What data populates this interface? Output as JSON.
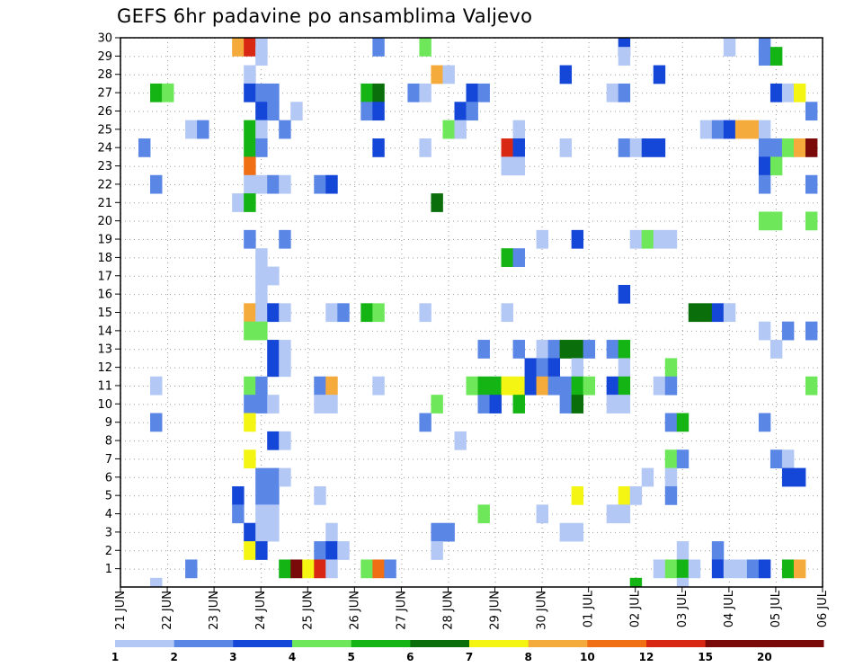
{
  "chart_data": {
    "type": "heatmap",
    "title": "GEFS 6hr padavine po ansamblima Valjevo",
    "xlabel": "",
    "ylabel": "",
    "members": [
      "1",
      "2",
      "3",
      "4",
      "5",
      "6",
      "7",
      "8",
      "9",
      "10",
      "11",
      "12",
      "13",
      "14",
      "15",
      "16",
      "17",
      "18",
      "19",
      "20",
      "21",
      "22",
      "23",
      "24",
      "25",
      "26",
      "27",
      "28",
      "29",
      "30"
    ],
    "ylim": [
      0,
      30
    ],
    "time_steps": 60,
    "step_hours": 6,
    "x_ticks": [
      {
        "step": 0,
        "label": "21 JUN"
      },
      {
        "step": 4,
        "label": "22 JUN"
      },
      {
        "step": 8,
        "label": "23 JUN"
      },
      {
        "step": 12,
        "label": "24 JUN"
      },
      {
        "step": 16,
        "label": "25 JUN"
      },
      {
        "step": 20,
        "label": "26 JUN"
      },
      {
        "step": 24,
        "label": "27 JUN"
      },
      {
        "step": 28,
        "label": "28 JUN"
      },
      {
        "step": 32,
        "label": "29 JUN"
      },
      {
        "step": 36,
        "label": "30 JUN"
      },
      {
        "step": 40,
        "label": "01 JUL"
      },
      {
        "step": 44,
        "label": "02 JUL"
      },
      {
        "step": 48,
        "label": "03 JUL"
      },
      {
        "step": 52,
        "label": "04 JUL"
      },
      {
        "step": 56,
        "label": "05 JUL"
      },
      {
        "step": 60,
        "label": "06 JUL"
      }
    ],
    "legend": {
      "thresholds": [
        "1",
        "2",
        "3",
        "4",
        "5",
        "6",
        "7",
        "8",
        "10",
        "12",
        "15",
        "20"
      ],
      "colors": [
        "#b4c8f5",
        "#5a86e6",
        "#1446d8",
        "#6ee85a",
        "#14b414",
        "#0a6e0a",
        "#f5f514",
        "#f5aa3c",
        "#f06e14",
        "#d82814",
        "#7a0a0a",
        "#7a0a0a"
      ]
    },
    "grid": true,
    "cells": [
      {
        "m": 30,
        "s": 10,
        "c": 7
      },
      {
        "m": 30,
        "s": 11,
        "c": 9
      },
      {
        "m": 30,
        "s": 12,
        "c": 0
      },
      {
        "m": 30,
        "s": 22,
        "c": 1
      },
      {
        "m": 30,
        "s": 26,
        "c": 3
      },
      {
        "m": 30,
        "s": 43,
        "c": 2
      },
      {
        "m": 30,
        "s": 52,
        "c": 0
      },
      {
        "m": 30,
        "s": 55,
        "c": 1
      },
      {
        "m": 29,
        "s": 12,
        "c": 0
      },
      {
        "m": 29,
        "s": 43,
        "c": 0
      },
      {
        "m": 29,
        "s": 55,
        "c": 1
      },
      {
        "m": 29,
        "s": 56,
        "c": 4
      },
      {
        "m": 28,
        "s": 11,
        "c": 0
      },
      {
        "m": 28,
        "s": 27,
        "c": 7
      },
      {
        "m": 28,
        "s": 28,
        "c": 0
      },
      {
        "m": 28,
        "s": 38,
        "c": 2
      },
      {
        "m": 28,
        "s": 46,
        "c": 2
      },
      {
        "m": 27,
        "s": 3,
        "c": 4
      },
      {
        "m": 27,
        "s": 4,
        "c": 3
      },
      {
        "m": 27,
        "s": 11,
        "c": 2
      },
      {
        "m": 27,
        "s": 12,
        "c": 1
      },
      {
        "m": 27,
        "s": 13,
        "c": 1
      },
      {
        "m": 27,
        "s": 21,
        "c": 4
      },
      {
        "m": 27,
        "s": 22,
        "c": 5
      },
      {
        "m": 27,
        "s": 25,
        "c": 1
      },
      {
        "m": 27,
        "s": 26,
        "c": 0
      },
      {
        "m": 27,
        "s": 30,
        "c": 2
      },
      {
        "m": 27,
        "s": 31,
        "c": 1
      },
      {
        "m": 27,
        "s": 42,
        "c": 0
      },
      {
        "m": 27,
        "s": 43,
        "c": 1
      },
      {
        "m": 27,
        "s": 56,
        "c": 2
      },
      {
        "m": 27,
        "s": 57,
        "c": 0
      },
      {
        "m": 27,
        "s": 58,
        "c": 6
      },
      {
        "m": 26,
        "s": 12,
        "c": 2
      },
      {
        "m": 26,
        "s": 13,
        "c": 1
      },
      {
        "m": 26,
        "s": 15,
        "c": 0
      },
      {
        "m": 26,
        "s": 21,
        "c": 1
      },
      {
        "m": 26,
        "s": 22,
        "c": 2
      },
      {
        "m": 26,
        "s": 29,
        "c": 2
      },
      {
        "m": 26,
        "s": 30,
        "c": 1
      },
      {
        "m": 26,
        "s": 59,
        "c": 1
      },
      {
        "m": 25,
        "s": 6,
        "c": 0
      },
      {
        "m": 25,
        "s": 7,
        "c": 1
      },
      {
        "m": 25,
        "s": 11,
        "c": 4
      },
      {
        "m": 25,
        "s": 12,
        "c": 0
      },
      {
        "m": 25,
        "s": 14,
        "c": 1
      },
      {
        "m": 25,
        "s": 28,
        "c": 3
      },
      {
        "m": 25,
        "s": 29,
        "c": 0
      },
      {
        "m": 25,
        "s": 34,
        "c": 0
      },
      {
        "m": 25,
        "s": 50,
        "c": 0
      },
      {
        "m": 25,
        "s": 51,
        "c": 1
      },
      {
        "m": 25,
        "s": 52,
        "c": 2
      },
      {
        "m": 25,
        "s": 53,
        "c": 7
      },
      {
        "m": 25,
        "s": 54,
        "c": 7
      },
      {
        "m": 25,
        "s": 55,
        "c": 0
      },
      {
        "m": 24,
        "s": 2,
        "c": 1
      },
      {
        "m": 24,
        "s": 11,
        "c": 4
      },
      {
        "m": 24,
        "s": 12,
        "c": 1
      },
      {
        "m": 24,
        "s": 22,
        "c": 2
      },
      {
        "m": 24,
        "s": 26,
        "c": 0
      },
      {
        "m": 24,
        "s": 33,
        "c": 9
      },
      {
        "m": 24,
        "s": 34,
        "c": 2
      },
      {
        "m": 24,
        "s": 38,
        "c": 0
      },
      {
        "m": 24,
        "s": 43,
        "c": 1
      },
      {
        "m": 24,
        "s": 44,
        "c": 0
      },
      {
        "m": 24,
        "s": 45,
        "c": 2
      },
      {
        "m": 24,
        "s": 46,
        "c": 2
      },
      {
        "m": 24,
        "s": 55,
        "c": 1
      },
      {
        "m": 24,
        "s": 56,
        "c": 1
      },
      {
        "m": 24,
        "s": 57,
        "c": 3
      },
      {
        "m": 24,
        "s": 58,
        "c": 7
      },
      {
        "m": 24,
        "s": 59,
        "c": 10
      },
      {
        "m": 23,
        "s": 11,
        "c": 8
      },
      {
        "m": 23,
        "s": 33,
        "c": 0
      },
      {
        "m": 23,
        "s": 34,
        "c": 0
      },
      {
        "m": 23,
        "s": 55,
        "c": 2
      },
      {
        "m": 23,
        "s": 56,
        "c": 3
      },
      {
        "m": 22,
        "s": 3,
        "c": 1
      },
      {
        "m": 22,
        "s": 11,
        "c": 0
      },
      {
        "m": 22,
        "s": 12,
        "c": 0
      },
      {
        "m": 22,
        "s": 13,
        "c": 1
      },
      {
        "m": 22,
        "s": 14,
        "c": 0
      },
      {
        "m": 22,
        "s": 17,
        "c": 1
      },
      {
        "m": 22,
        "s": 18,
        "c": 2
      },
      {
        "m": 22,
        "s": 55,
        "c": 1
      },
      {
        "m": 22,
        "s": 59,
        "c": 1
      },
      {
        "m": 21,
        "s": 10,
        "c": 0
      },
      {
        "m": 21,
        "s": 11,
        "c": 4
      },
      {
        "m": 21,
        "s": 27,
        "c": 5
      },
      {
        "m": 20,
        "s": 55,
        "c": 3
      },
      {
        "m": 20,
        "s": 56,
        "c": 3
      },
      {
        "m": 20,
        "s": 59,
        "c": 3
      },
      {
        "m": 19,
        "s": 11,
        "c": 1
      },
      {
        "m": 19,
        "s": 14,
        "c": 1
      },
      {
        "m": 19,
        "s": 36,
        "c": 0
      },
      {
        "m": 19,
        "s": 39,
        "c": 2
      },
      {
        "m": 19,
        "s": 44,
        "c": 0
      },
      {
        "m": 19,
        "s": 45,
        "c": 3
      },
      {
        "m": 19,
        "s": 46,
        "c": 0
      },
      {
        "m": 19,
        "s": 47,
        "c": 0
      },
      {
        "m": 18,
        "s": 12,
        "c": 0
      },
      {
        "m": 18,
        "s": 33,
        "c": 4
      },
      {
        "m": 18,
        "s": 34,
        "c": 1
      },
      {
        "m": 17,
        "s": 12,
        "c": 0
      },
      {
        "m": 17,
        "s": 13,
        "c": 0
      },
      {
        "m": 16,
        "s": 12,
        "c": 0
      },
      {
        "m": 16,
        "s": 43,
        "c": 2
      },
      {
        "m": 15,
        "s": 11,
        "c": 7
      },
      {
        "m": 15,
        "s": 12,
        "c": 0
      },
      {
        "m": 15,
        "s": 13,
        "c": 2
      },
      {
        "m": 15,
        "s": 14,
        "c": 0
      },
      {
        "m": 15,
        "s": 18,
        "c": 0
      },
      {
        "m": 15,
        "s": 19,
        "c": 1
      },
      {
        "m": 15,
        "s": 21,
        "c": 4
      },
      {
        "m": 15,
        "s": 22,
        "c": 3
      },
      {
        "m": 15,
        "s": 26,
        "c": 0
      },
      {
        "m": 15,
        "s": 33,
        "c": 0
      },
      {
        "m": 15,
        "s": 49,
        "c": 5
      },
      {
        "m": 15,
        "s": 50,
        "c": 5
      },
      {
        "m": 15,
        "s": 51,
        "c": 2
      },
      {
        "m": 15,
        "s": 52,
        "c": 0
      },
      {
        "m": 14,
        "s": 11,
        "c": 3
      },
      {
        "m": 14,
        "s": 12,
        "c": 3
      },
      {
        "m": 14,
        "s": 55,
        "c": 0
      },
      {
        "m": 14,
        "s": 57,
        "c": 1
      },
      {
        "m": 14,
        "s": 59,
        "c": 1
      },
      {
        "m": 13,
        "s": 13,
        "c": 2
      },
      {
        "m": 13,
        "s": 14,
        "c": 0
      },
      {
        "m": 13,
        "s": 31,
        "c": 1
      },
      {
        "m": 13,
        "s": 34,
        "c": 1
      },
      {
        "m": 13,
        "s": 36,
        "c": 0
      },
      {
        "m": 13,
        "s": 37,
        "c": 1
      },
      {
        "m": 13,
        "s": 38,
        "c": 5
      },
      {
        "m": 13,
        "s": 39,
        "c": 5
      },
      {
        "m": 13,
        "s": 40,
        "c": 1
      },
      {
        "m": 13,
        "s": 42,
        "c": 1
      },
      {
        "m": 13,
        "s": 43,
        "c": 4
      },
      {
        "m": 13,
        "s": 56,
        "c": 0
      },
      {
        "m": 12,
        "s": 13,
        "c": 2
      },
      {
        "m": 12,
        "s": 14,
        "c": 0
      },
      {
        "m": 12,
        "s": 35,
        "c": 2
      },
      {
        "m": 12,
        "s": 36,
        "c": 1
      },
      {
        "m": 12,
        "s": 37,
        "c": 2
      },
      {
        "m": 12,
        "s": 39,
        "c": 0
      },
      {
        "m": 12,
        "s": 43,
        "c": 0
      },
      {
        "m": 12,
        "s": 47,
        "c": 3
      },
      {
        "m": 11,
        "s": 3,
        "c": 0
      },
      {
        "m": 11,
        "s": 11,
        "c": 3
      },
      {
        "m": 11,
        "s": 12,
        "c": 1
      },
      {
        "m": 11,
        "s": 17,
        "c": 1
      },
      {
        "m": 11,
        "s": 18,
        "c": 7
      },
      {
        "m": 11,
        "s": 22,
        "c": 0
      },
      {
        "m": 11,
        "s": 30,
        "c": 3
      },
      {
        "m": 11,
        "s": 31,
        "c": 4
      },
      {
        "m": 11,
        "s": 32,
        "c": 4
      },
      {
        "m": 11,
        "s": 33,
        "c": 6
      },
      {
        "m": 11,
        "s": 34,
        "c": 6
      },
      {
        "m": 11,
        "s": 35,
        "c": 2
      },
      {
        "m": 11,
        "s": 36,
        "c": 7
      },
      {
        "m": 11,
        "s": 37,
        "c": 1
      },
      {
        "m": 11,
        "s": 38,
        "c": 1
      },
      {
        "m": 11,
        "s": 39,
        "c": 4
      },
      {
        "m": 11,
        "s": 40,
        "c": 3
      },
      {
        "m": 11,
        "s": 42,
        "c": 2
      },
      {
        "m": 11,
        "s": 43,
        "c": 4
      },
      {
        "m": 11,
        "s": 46,
        "c": 0
      },
      {
        "m": 11,
        "s": 47,
        "c": 1
      },
      {
        "m": 11,
        "s": 59,
        "c": 3
      },
      {
        "m": 10,
        "s": 11,
        "c": 1
      },
      {
        "m": 10,
        "s": 12,
        "c": 1
      },
      {
        "m": 10,
        "s": 13,
        "c": 0
      },
      {
        "m": 10,
        "s": 17,
        "c": 0
      },
      {
        "m": 10,
        "s": 18,
        "c": 0
      },
      {
        "m": 10,
        "s": 27,
        "c": 3
      },
      {
        "m": 10,
        "s": 31,
        "c": 1
      },
      {
        "m": 10,
        "s": 32,
        "c": 2
      },
      {
        "m": 10,
        "s": 34,
        "c": 4
      },
      {
        "m": 10,
        "s": 38,
        "c": 1
      },
      {
        "m": 10,
        "s": 39,
        "c": 5
      },
      {
        "m": 10,
        "s": 42,
        "c": 0
      },
      {
        "m": 10,
        "s": 43,
        "c": 0
      },
      {
        "m": 9,
        "s": 3,
        "c": 1
      },
      {
        "m": 9,
        "s": 11,
        "c": 6
      },
      {
        "m": 9,
        "s": 26,
        "c": 1
      },
      {
        "m": 9,
        "s": 47,
        "c": 1
      },
      {
        "m": 9,
        "s": 48,
        "c": 4
      },
      {
        "m": 9,
        "s": 55,
        "c": 1
      },
      {
        "m": 8,
        "s": 13,
        "c": 2
      },
      {
        "m": 8,
        "s": 14,
        "c": 0
      },
      {
        "m": 8,
        "s": 29,
        "c": 0
      },
      {
        "m": 7,
        "s": 11,
        "c": 6
      },
      {
        "m": 7,
        "s": 47,
        "c": 3
      },
      {
        "m": 7,
        "s": 48,
        "c": 1
      },
      {
        "m": 7,
        "s": 56,
        "c": 1
      },
      {
        "m": 7,
        "s": 57,
        "c": 0
      },
      {
        "m": 6,
        "s": 12,
        "c": 1
      },
      {
        "m": 6,
        "s": 13,
        "c": 1
      },
      {
        "m": 6,
        "s": 14,
        "c": 0
      },
      {
        "m": 6,
        "s": 45,
        "c": 0
      },
      {
        "m": 6,
        "s": 47,
        "c": 0
      },
      {
        "m": 6,
        "s": 57,
        "c": 2
      },
      {
        "m": 6,
        "s": 58,
        "c": 2
      },
      {
        "m": 5,
        "s": 10,
        "c": 2
      },
      {
        "m": 5,
        "s": 12,
        "c": 1
      },
      {
        "m": 5,
        "s": 13,
        "c": 1
      },
      {
        "m": 5,
        "s": 17,
        "c": 0
      },
      {
        "m": 5,
        "s": 39,
        "c": 6
      },
      {
        "m": 5,
        "s": 43,
        "c": 6
      },
      {
        "m": 5,
        "s": 44,
        "c": 0
      },
      {
        "m": 5,
        "s": 47,
        "c": 1
      },
      {
        "m": 4,
        "s": 10,
        "c": 1
      },
      {
        "m": 4,
        "s": 12,
        "c": 0
      },
      {
        "m": 4,
        "s": 13,
        "c": 0
      },
      {
        "m": 4,
        "s": 31,
        "c": 3
      },
      {
        "m": 4,
        "s": 36,
        "c": 0
      },
      {
        "m": 4,
        "s": 42,
        "c": 0
      },
      {
        "m": 4,
        "s": 43,
        "c": 0
      },
      {
        "m": 3,
        "s": 11,
        "c": 2
      },
      {
        "m": 3,
        "s": 12,
        "c": 0
      },
      {
        "m": 3,
        "s": 13,
        "c": 0
      },
      {
        "m": 3,
        "s": 18,
        "c": 0
      },
      {
        "m": 3,
        "s": 27,
        "c": 1
      },
      {
        "m": 3,
        "s": 28,
        "c": 1
      },
      {
        "m": 3,
        "s": 38,
        "c": 0
      },
      {
        "m": 3,
        "s": 39,
        "c": 0
      },
      {
        "m": 2,
        "s": 11,
        "c": 6
      },
      {
        "m": 2,
        "s": 12,
        "c": 2
      },
      {
        "m": 2,
        "s": 17,
        "c": 1
      },
      {
        "m": 2,
        "s": 18,
        "c": 2
      },
      {
        "m": 2,
        "s": 19,
        "c": 0
      },
      {
        "m": 2,
        "s": 27,
        "c": 0
      },
      {
        "m": 2,
        "s": 48,
        "c": 0
      },
      {
        "m": 2,
        "s": 51,
        "c": 1
      },
      {
        "m": 1,
        "s": 6,
        "c": 1
      },
      {
        "m": 1,
        "s": 14,
        "c": 4
      },
      {
        "m": 1,
        "s": 15,
        "c": 10
      },
      {
        "m": 1,
        "s": 16,
        "c": 6
      },
      {
        "m": 1,
        "s": 17,
        "c": 9
      },
      {
        "m": 1,
        "s": 18,
        "c": 0
      },
      {
        "m": 1,
        "s": 21,
        "c": 3
      },
      {
        "m": 1,
        "s": 22,
        "c": 8
      },
      {
        "m": 1,
        "s": 23,
        "c": 1
      },
      {
        "m": 1,
        "s": 46,
        "c": 0
      },
      {
        "m": 1,
        "s": 47,
        "c": 3
      },
      {
        "m": 1,
        "s": 48,
        "c": 4
      },
      {
        "m": 1,
        "s": 49,
        "c": 0
      },
      {
        "m": 1,
        "s": 51,
        "c": 2
      },
      {
        "m": 1,
        "s": 52,
        "c": 0
      },
      {
        "m": 1,
        "s": 53,
        "c": 0
      },
      {
        "m": 1,
        "s": 54,
        "c": 1
      },
      {
        "m": 1,
        "s": 55,
        "c": 2
      },
      {
        "m": 1,
        "s": 57,
        "c": 4
      },
      {
        "m": 1,
        "s": 58,
        "c": 7
      },
      {
        "m": 0,
        "s": 3,
        "c": 0
      },
      {
        "m": 0,
        "s": 44,
        "c": 4
      },
      {
        "m": 0,
        "s": 48,
        "c": 0
      }
    ]
  }
}
